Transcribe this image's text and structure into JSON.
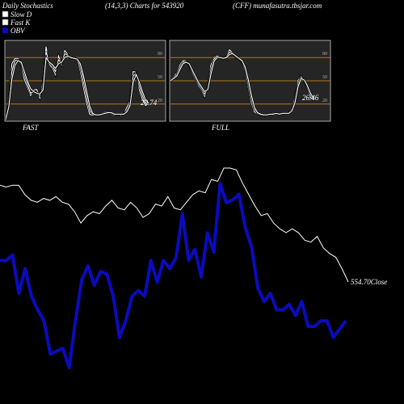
{
  "header": {
    "left": "Daily Stochastics",
    "params": "(14,3,3) Charts for 543920",
    "right": "(CFF) munafasutra.tbsjar.com"
  },
  "legend": {
    "slow_d": "Slow  D",
    "fast_k": "Fast K",
    "obv": "OBV"
  },
  "colors": {
    "background": "#000000",
    "panel": "#252525",
    "grid": "#b07a14",
    "line": "#ffffff",
    "obv": "#0b0bbd"
  },
  "chart_data": [
    {
      "type": "line",
      "panel": "FAST",
      "xlabel": "FAST",
      "ylim": [
        0,
        100
      ],
      "yticks": [
        "80",
        "50",
        "20"
      ],
      "last_value_label": "20.74",
      "series": [
        {
          "values": [
            0,
            18,
            72,
            79,
            79,
            70,
            52,
            42,
            31,
            38,
            39,
            28,
            48,
            94,
            71,
            67,
            58,
            82,
            71,
            89,
            84,
            78,
            80,
            78,
            63,
            42,
            22,
            7,
            5,
            6,
            5,
            8,
            10,
            10,
            7,
            5,
            8,
            5,
            7,
            16,
            24,
            62,
            61,
            38,
            26,
            18,
            21
          ]
        },
        {
          "values": [
            0,
            17,
            62,
            76,
            77,
            72,
            58,
            46,
            34,
            36,
            35,
            31,
            42,
            88,
            72,
            70,
            62,
            77,
            73,
            85,
            83,
            79,
            79,
            77,
            68,
            50,
            30,
            12,
            6,
            6,
            6,
            7,
            9,
            10,
            8,
            6,
            7,
            6,
            7,
            12,
            21,
            56,
            60,
            43,
            31,
            21,
            21
          ]
        },
        {
          "values": [
            0,
            16,
            52,
            70,
            76,
            74,
            62,
            50,
            40,
            36,
            34,
            33,
            38,
            80,
            74,
            71,
            66,
            72,
            74,
            80,
            82,
            80,
            79,
            78,
            72,
            57,
            38,
            18,
            8,
            6,
            6,
            7,
            8,
            9,
            9,
            7,
            7,
            7,
            7,
            10,
            18,
            48,
            58,
            48,
            36,
            25,
            21
          ]
        }
      ]
    },
    {
      "type": "line",
      "panel": "FULL",
      "xlabel": "FULL",
      "ylim": [
        0,
        100
      ],
      "yticks": [
        "80",
        "50",
        "20"
      ],
      "last_value_label": "26.46",
      "series": [
        {
          "values": [
            52,
            55,
            60,
            70,
            76,
            76,
            70,
            60,
            52,
            44,
            38,
            30,
            42,
            70,
            80,
            82,
            80,
            78,
            82,
            90,
            86,
            80,
            78,
            74,
            62,
            42,
            22,
            10,
            7,
            6,
            5,
            6,
            7,
            8,
            8,
            7,
            8,
            8,
            8,
            14,
            28,
            50,
            56,
            50,
            40,
            28,
            26
          ]
        },
        {
          "values": [
            51,
            54,
            58,
            67,
            74,
            75,
            71,
            62,
            54,
            46,
            40,
            33,
            40,
            64,
            78,
            82,
            80,
            79,
            81,
            87,
            86,
            81,
            78,
            75,
            65,
            47,
            27,
            13,
            8,
            6,
            6,
            6,
            7,
            8,
            8,
            7,
            8,
            8,
            8,
            12,
            24,
            46,
            55,
            51,
            42,
            31,
            27
          ]
        },
        {
          "values": [
            50,
            53,
            56,
            64,
            72,
            74,
            72,
            64,
            56,
            48,
            42,
            36,
            39,
            58,
            75,
            80,
            80,
            79,
            80,
            84,
            85,
            82,
            79,
            76,
            68,
            52,
            32,
            16,
            9,
            7,
            6,
            6,
            7,
            7,
            8,
            7,
            8,
            8,
            8,
            11,
            21,
            42,
            53,
            51,
            44,
            34,
            28
          ]
        }
      ]
    },
    {
      "type": "line",
      "panel": "price",
      "last_value_label": "554.70Close",
      "series": [
        {
          "name": "Close",
          "color": "#ffffff",
          "values": [
            63,
            62,
            63,
            63,
            58,
            55,
            54,
            56,
            55,
            57,
            54,
            53,
            49,
            43,
            47,
            49,
            48,
            52,
            55,
            51,
            50,
            54,
            51,
            46,
            48,
            53,
            52,
            57,
            51,
            50,
            54,
            58,
            60,
            59,
            66,
            65,
            72,
            72,
            71,
            64,
            58,
            52,
            47,
            48,
            43,
            40,
            38,
            40,
            38,
            34,
            33,
            36,
            30,
            27,
            25,
            19,
            12
          ]
        },
        {
          "name": "OBV",
          "color": "#0b0bbd",
          "values": [
            -28,
            -28,
            -26,
            -40,
            -31,
            -41,
            -46,
            -50,
            -62,
            -61,
            -60,
            -67,
            -50,
            -35,
            -30,
            -37,
            -32,
            -33,
            -41,
            -56,
            -50,
            -41,
            -39,
            -41,
            -28,
            -36,
            -28,
            -31,
            -27,
            -11,
            -28,
            -24,
            -34,
            -18,
            -25,
            0,
            -7,
            -6,
            -4,
            -16,
            -23,
            -38,
            -43,
            -40,
            -46,
            -46,
            -44,
            -48,
            -43,
            -52,
            -52,
            -50,
            -50,
            -56,
            -53,
            -50
          ]
        }
      ]
    }
  ]
}
